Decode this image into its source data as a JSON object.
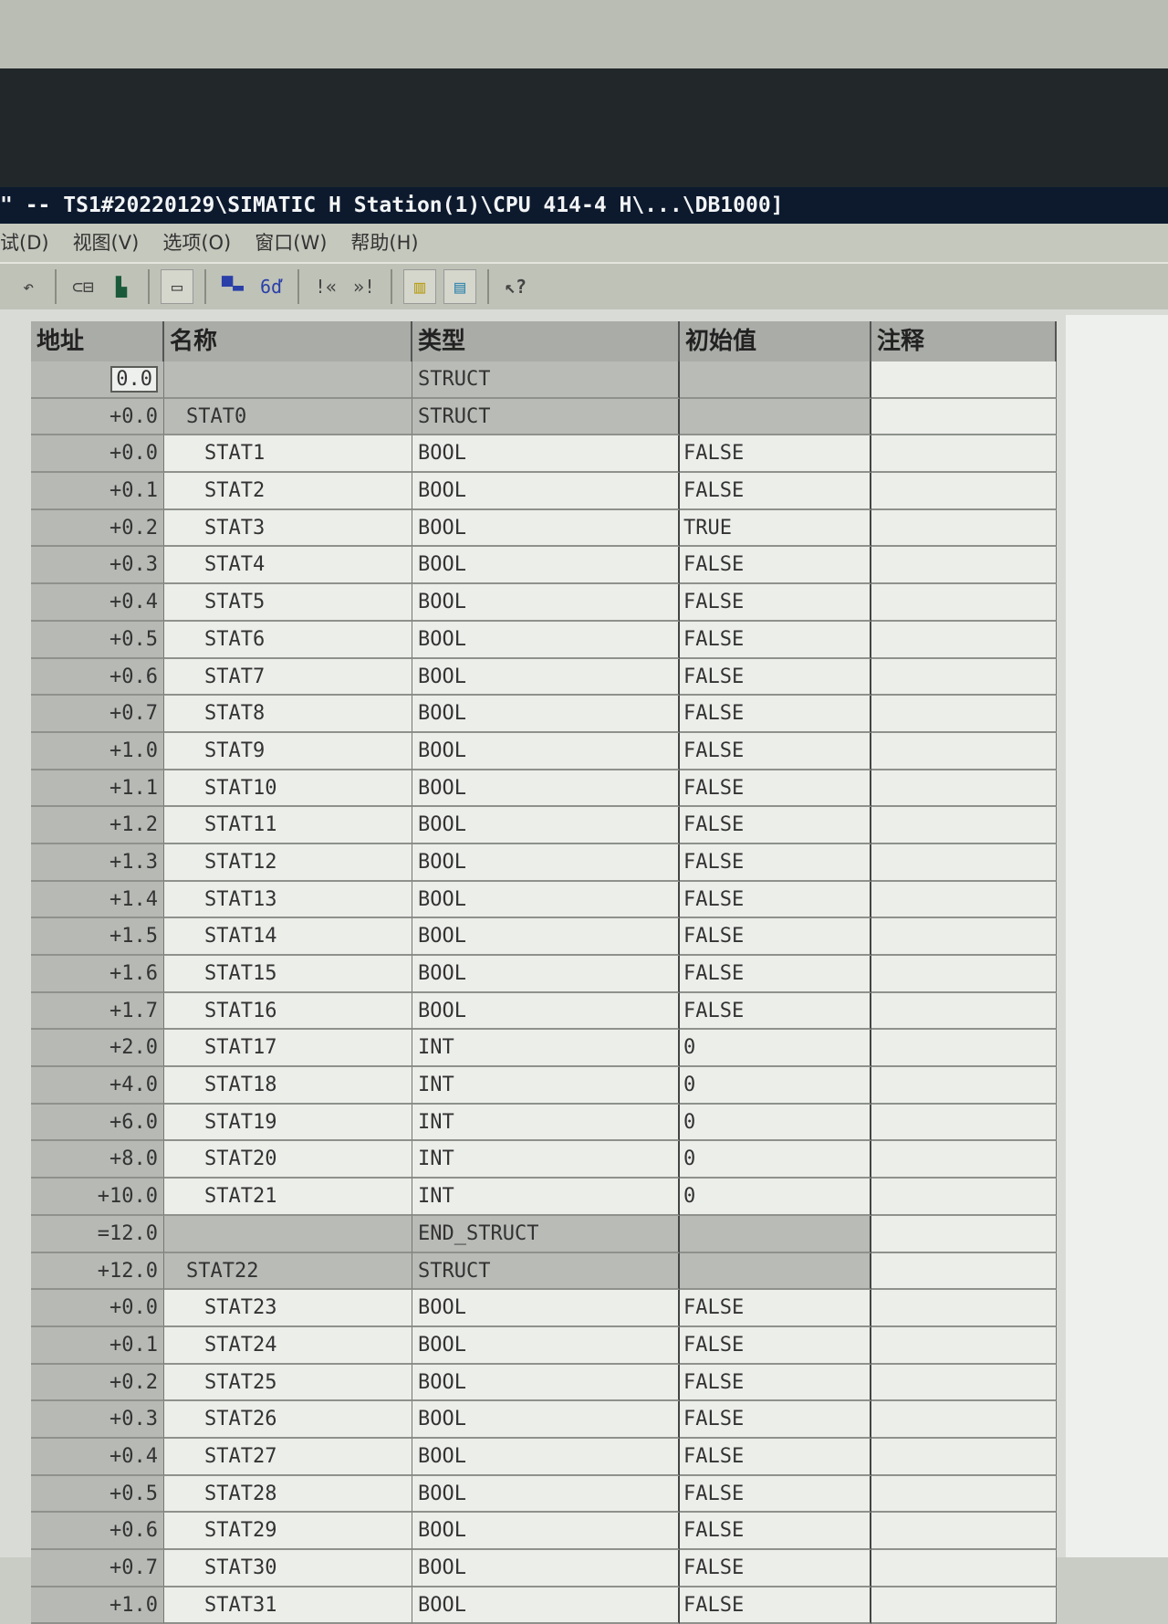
{
  "window": {
    "title": "\" -- TS1#20220129\\SIMATIC H Station(1)\\CPU 414-4 H\\...\\DB1000]"
  },
  "menu": [
    "试(D)",
    "视图(V)",
    "选项(O)",
    "窗口(W)",
    "帮助(H)"
  ],
  "toolbar": [
    "undo-icon",
    "compare-icon",
    "download-icon",
    "pointer-icon",
    "network-icon",
    "glasses-icon",
    "first-icon",
    "last-icon",
    "declaration-view-icon",
    "data-view-icon",
    "help-icon"
  ],
  "table": {
    "headers": [
      "地址",
      "名称",
      "类型",
      "初始值",
      "注释"
    ],
    "rows": [
      {
        "addr": "0.0",
        "name": "",
        "type": "STRUCT",
        "init": "",
        "comment": "",
        "level": 0,
        "struct": true
      },
      {
        "addr": "+0.0",
        "name": "STAT0",
        "type": "STRUCT",
        "init": "",
        "comment": "",
        "level": 1,
        "struct": true
      },
      {
        "addr": "+0.0",
        "name": "STAT1",
        "type": "BOOL",
        "init": "FALSE",
        "comment": "",
        "level": 2
      },
      {
        "addr": "+0.1",
        "name": "STAT2",
        "type": "BOOL",
        "init": "FALSE",
        "comment": "",
        "level": 2
      },
      {
        "addr": "+0.2",
        "name": "STAT3",
        "type": "BOOL",
        "init": "TRUE",
        "comment": "",
        "level": 2
      },
      {
        "addr": "+0.3",
        "name": "STAT4",
        "type": "BOOL",
        "init": "FALSE",
        "comment": "",
        "level": 2
      },
      {
        "addr": "+0.4",
        "name": "STAT5",
        "type": "BOOL",
        "init": "FALSE",
        "comment": "",
        "level": 2
      },
      {
        "addr": "+0.5",
        "name": "STAT6",
        "type": "BOOL",
        "init": "FALSE",
        "comment": "",
        "level": 2
      },
      {
        "addr": "+0.6",
        "name": "STAT7",
        "type": "BOOL",
        "init": "FALSE",
        "comment": "",
        "level": 2
      },
      {
        "addr": "+0.7",
        "name": "STAT8",
        "type": "BOOL",
        "init": "FALSE",
        "comment": "",
        "level": 2
      },
      {
        "addr": "+1.0",
        "name": "STAT9",
        "type": "BOOL",
        "init": "FALSE",
        "comment": "",
        "level": 2
      },
      {
        "addr": "+1.1",
        "name": "STAT10",
        "type": "BOOL",
        "init": "FALSE",
        "comment": "",
        "level": 2
      },
      {
        "addr": "+1.2",
        "name": "STAT11",
        "type": "BOOL",
        "init": "FALSE",
        "comment": "",
        "level": 2
      },
      {
        "addr": "+1.3",
        "name": "STAT12",
        "type": "BOOL",
        "init": "FALSE",
        "comment": "",
        "level": 2
      },
      {
        "addr": "+1.4",
        "name": "STAT13",
        "type": "BOOL",
        "init": "FALSE",
        "comment": "",
        "level": 2
      },
      {
        "addr": "+1.5",
        "name": "STAT14",
        "type": "BOOL",
        "init": "FALSE",
        "comment": "",
        "level": 2
      },
      {
        "addr": "+1.6",
        "name": "STAT15",
        "type": "BOOL",
        "init": "FALSE",
        "comment": "",
        "level": 2
      },
      {
        "addr": "+1.7",
        "name": "STAT16",
        "type": "BOOL",
        "init": "FALSE",
        "comment": "",
        "level": 2
      },
      {
        "addr": "+2.0",
        "name": "STAT17",
        "type": "INT",
        "init": "0",
        "comment": "",
        "level": 2
      },
      {
        "addr": "+4.0",
        "name": "STAT18",
        "type": "INT",
        "init": "0",
        "comment": "",
        "level": 2
      },
      {
        "addr": "+6.0",
        "name": "STAT19",
        "type": "INT",
        "init": "0",
        "comment": "",
        "level": 2
      },
      {
        "addr": "+8.0",
        "name": "STAT20",
        "type": "INT",
        "init": "0",
        "comment": "",
        "level": 2
      },
      {
        "addr": "+10.0",
        "name": "STAT21",
        "type": "INT",
        "init": "0",
        "comment": "",
        "level": 2
      },
      {
        "addr": "=12.0",
        "name": "",
        "type": "END_STRUCT",
        "init": "",
        "comment": "",
        "level": 1,
        "struct": true
      },
      {
        "addr": "+12.0",
        "name": "STAT22",
        "type": "STRUCT",
        "init": "",
        "comment": "",
        "level": 1,
        "struct": true
      },
      {
        "addr": "+0.0",
        "name": "STAT23",
        "type": "BOOL",
        "init": "FALSE",
        "comment": "",
        "level": 2
      },
      {
        "addr": "+0.1",
        "name": "STAT24",
        "type": "BOOL",
        "init": "FALSE",
        "comment": "",
        "level": 2
      },
      {
        "addr": "+0.2",
        "name": "STAT25",
        "type": "BOOL",
        "init": "FALSE",
        "comment": "",
        "level": 2
      },
      {
        "addr": "+0.3",
        "name": "STAT26",
        "type": "BOOL",
        "init": "FALSE",
        "comment": "",
        "level": 2
      },
      {
        "addr": "+0.4",
        "name": "STAT27",
        "type": "BOOL",
        "init": "FALSE",
        "comment": "",
        "level": 2
      },
      {
        "addr": "+0.5",
        "name": "STAT28",
        "type": "BOOL",
        "init": "FALSE",
        "comment": "",
        "level": 2
      },
      {
        "addr": "+0.6",
        "name": "STAT29",
        "type": "BOOL",
        "init": "FALSE",
        "comment": "",
        "level": 2
      },
      {
        "addr": "+0.7",
        "name": "STAT30",
        "type": "BOOL",
        "init": "FALSE",
        "comment": "",
        "level": 2
      },
      {
        "addr": "+1.0",
        "name": "STAT31",
        "type": "BOOL",
        "init": "FALSE",
        "comment": "",
        "level": 2
      }
    ]
  }
}
